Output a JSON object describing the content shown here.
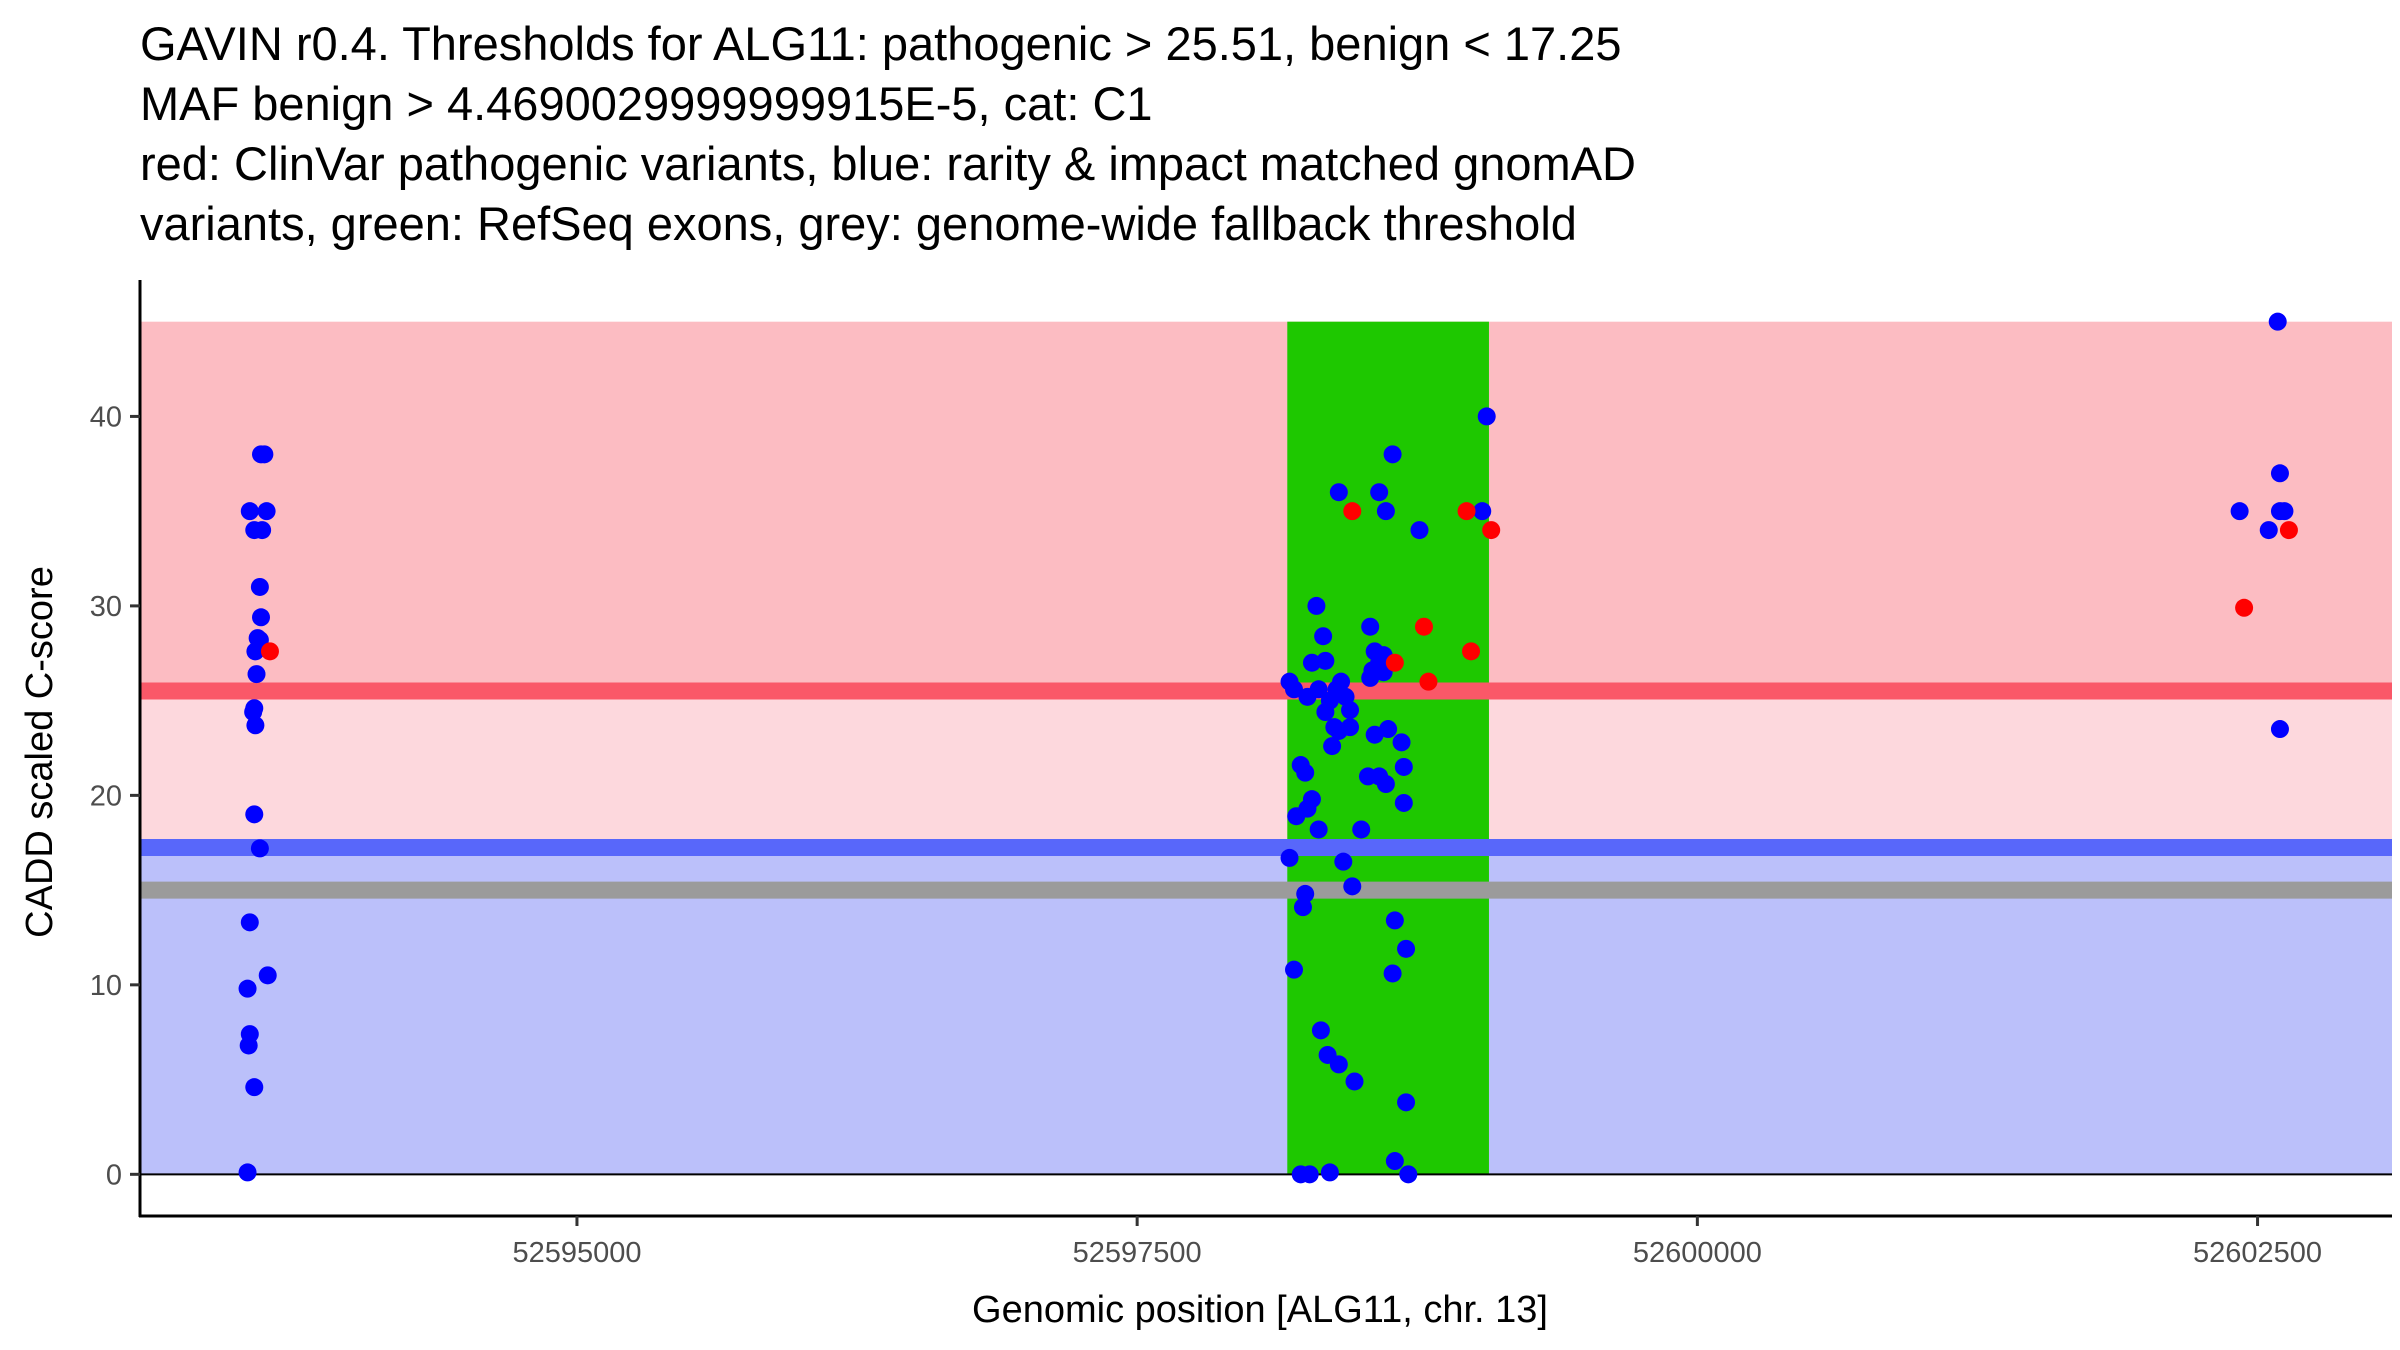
{
  "title_lines": [
    "GAVIN r0.4. Thresholds for ALG11: pathogenic > 25.51, benign < 17.25",
    "MAF benign > 4.4690029999999915E-5, cat: C1",
    "red: ClinVar pathogenic variants, blue: rarity & impact matched gnomAD",
    "variants, green: RefSeq exons, grey: genome-wide fallback threshold"
  ],
  "chart_data": {
    "type": "scatter",
    "xlabel": "Genomic position [ALG11, chr. 13]",
    "ylabel": "CADD scaled C-score",
    "xlim": [
      52593050,
      52603100
    ],
    "ylim": [
      -2.2,
      47.2
    ],
    "x_ticks": [
      52595000,
      52597500,
      52600000,
      52602500
    ],
    "y_ticks": [
      0,
      10,
      20,
      30,
      40
    ],
    "x_tick_labels": [
      "52595000",
      "52597500",
      "52600000",
      "52602500"
    ],
    "y_tick_labels": [
      "0",
      "10",
      "20",
      "30",
      "40"
    ],
    "colors": {
      "pathogenic_region": "#fcbcc2",
      "intermediate_region": "#fdd8dd",
      "benign_region": "#bbc0fa",
      "exon": "#1ec800",
      "pathogenic_threshold_line": "#fa5868",
      "benign_threshold_line": "#5867fa",
      "fallback_threshold_line": "#9b9b9b",
      "clinvar_point": "#ff0000",
      "gnomad_point": "#0000ff"
    },
    "regions": [
      {
        "name": "pathogenic",
        "y_from": 25.51,
        "y_to": 45
      },
      {
        "name": "intermediate",
        "y_from": 17.25,
        "y_to": 25.51
      },
      {
        "name": "benign",
        "y_from": 0,
        "y_to": 17.25
      }
    ],
    "exons": [
      {
        "x_from": 52598170,
        "x_to": 52599070
      }
    ],
    "thresholds": {
      "pathogenic": 25.51,
      "benign": 17.25,
      "fallback": 15.0
    },
    "series": [
      {
        "name": "gnomAD matched variants",
        "color": "blue",
        "points": [
          [
            52593540,
            35.0
          ],
          [
            52593560,
            34.0
          ],
          [
            52593590,
            38.0
          ],
          [
            52593605,
            38.0
          ],
          [
            52593615,
            35.0
          ],
          [
            52593595,
            34.0
          ],
          [
            52593585,
            31.0
          ],
          [
            52593590,
            29.4
          ],
          [
            52593575,
            28.3
          ],
          [
            52593585,
            28.2
          ],
          [
            52593565,
            27.6
          ],
          [
            52593570,
            26.4
          ],
          [
            52593560,
            24.6
          ],
          [
            52593555,
            24.4
          ],
          [
            52593565,
            23.7
          ],
          [
            52593560,
            19.0
          ],
          [
            52593585,
            17.2
          ],
          [
            52593540,
            13.3
          ],
          [
            52593530,
            9.8
          ],
          [
            52593620,
            10.5
          ],
          [
            52593540,
            7.4
          ],
          [
            52593535,
            6.8
          ],
          [
            52593560,
            4.6
          ],
          [
            52593530,
            0.1
          ],
          [
            52598180,
            26.0
          ],
          [
            52598200,
            25.6
          ],
          [
            52598260,
            25.2
          ],
          [
            52598310,
            25.6
          ],
          [
            52598360,
            25.0
          ],
          [
            52598340,
            24.4
          ],
          [
            52598390,
            25.6
          ],
          [
            52598410,
            26.0
          ],
          [
            52598430,
            25.2
          ],
          [
            52598450,
            24.5
          ],
          [
            52598380,
            23.6
          ],
          [
            52598400,
            23.4
          ],
          [
            52598370,
            22.6
          ],
          [
            52598450,
            23.6
          ],
          [
            52598560,
            23.2
          ],
          [
            52598620,
            23.5
          ],
          [
            52598680,
            22.8
          ],
          [
            52598530,
            21.0
          ],
          [
            52598580,
            21.0
          ],
          [
            52598610,
            20.6
          ],
          [
            52598690,
            21.5
          ],
          [
            52598230,
            21.6
          ],
          [
            52598250,
            21.2
          ],
          [
            52598260,
            19.3
          ],
          [
            52598280,
            19.8
          ],
          [
            52598210,
            18.9
          ],
          [
            52598310,
            18.2
          ],
          [
            52598500,
            18.2
          ],
          [
            52598690,
            19.6
          ],
          [
            52598180,
            16.7
          ],
          [
            52598250,
            14.8
          ],
          [
            52598240,
            14.1
          ],
          [
            52598420,
            16.5
          ],
          [
            52598460,
            15.2
          ],
          [
            52598650,
            13.4
          ],
          [
            52598700,
            11.9
          ],
          [
            52598200,
            10.8
          ],
          [
            52598640,
            10.6
          ],
          [
            52598320,
            7.6
          ],
          [
            52598350,
            6.3
          ],
          [
            52598400,
            5.8
          ],
          [
            52598470,
            4.9
          ],
          [
            52598700,
            3.8
          ],
          [
            52598650,
            0.7
          ],
          [
            52598710,
            0.0
          ],
          [
            52598230,
            0.0
          ],
          [
            52598270,
            0.0
          ],
          [
            52598360,
            0.1
          ],
          [
            52598300,
            30.0
          ],
          [
            52598330,
            28.4
          ],
          [
            52598280,
            27.0
          ],
          [
            52598340,
            27.1
          ],
          [
            52598540,
            28.9
          ],
          [
            52598560,
            27.6
          ],
          [
            52598600,
            27.4
          ],
          [
            52598580,
            27.0
          ],
          [
            52598550,
            26.6
          ],
          [
            52598540,
            26.2
          ],
          [
            52598600,
            26.5
          ],
          [
            52598400,
            36.0
          ],
          [
            52598580,
            36.0
          ],
          [
            52598610,
            35.0
          ],
          [
            52598640,
            38.0
          ],
          [
            52598760,
            34.0
          ],
          [
            52599040,
            35.0
          ],
          [
            52599060,
            40.0
          ],
          [
            52602420,
            35.0
          ],
          [
            52602550,
            34.0
          ],
          [
            52602590,
            45.0
          ],
          [
            52602600,
            37.0
          ],
          [
            52602600,
            35.0
          ],
          [
            52602620,
            35.0
          ],
          [
            52602600,
            23.5
          ]
        ]
      },
      {
        "name": "ClinVar pathogenic variants",
        "color": "red",
        "points": [
          [
            52593630,
            27.6
          ],
          [
            52598460,
            35.0
          ],
          [
            52598970,
            35.0
          ],
          [
            52599080,
            34.0
          ],
          [
            52598780,
            28.9
          ],
          [
            52598990,
            27.6
          ],
          [
            52598650,
            27.0
          ],
          [
            52598800,
            26.0
          ],
          [
            52602440,
            29.9
          ],
          [
            52602640,
            34.0
          ]
        ]
      }
    ]
  }
}
